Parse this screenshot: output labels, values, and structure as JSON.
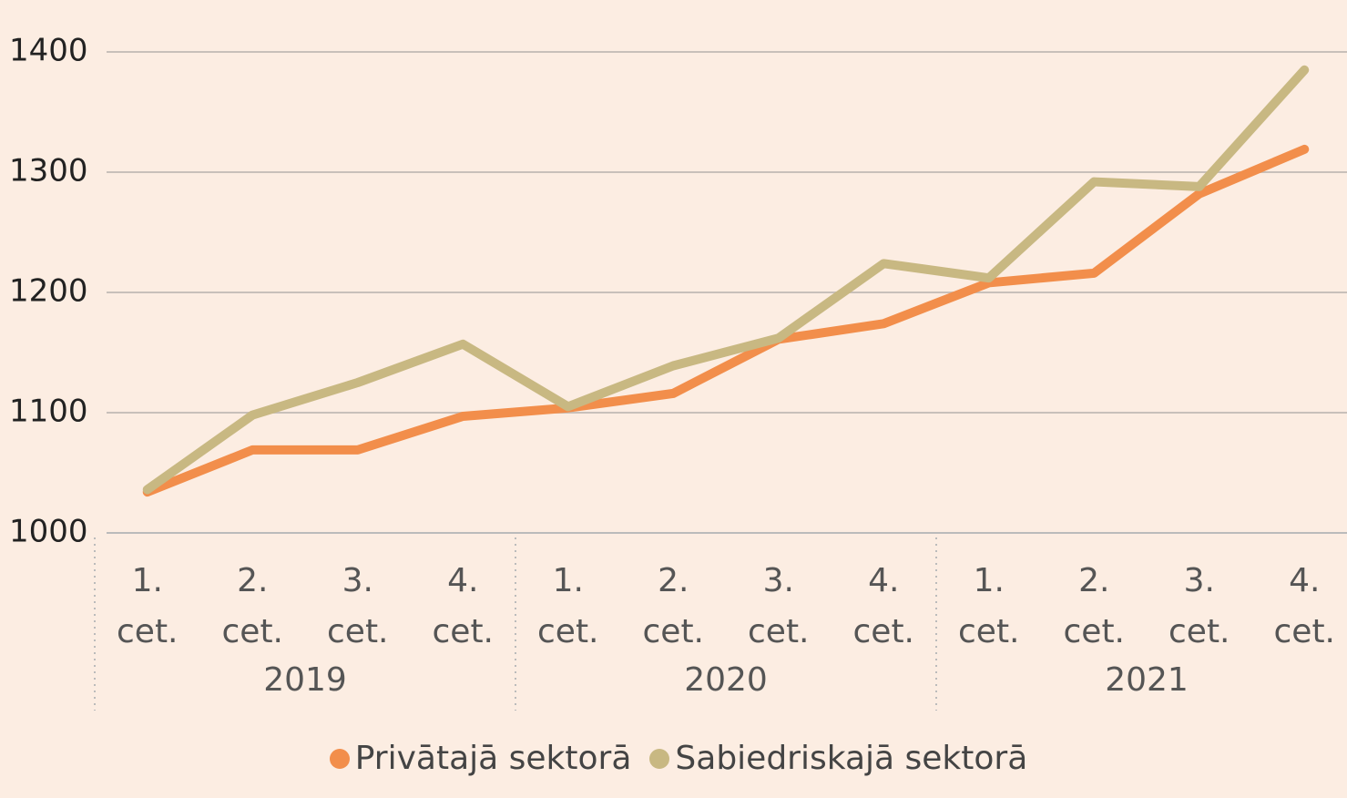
{
  "chart_data": {
    "type": "line",
    "categories": [
      "1. cet.",
      "2. cet.",
      "3. cet.",
      "4. cet.",
      "1. cet.",
      "2. cet.",
      "3. cet.",
      "4. cet.",
      "1. cet.",
      "2. cet.",
      "3. cet.",
      "4. cet."
    ],
    "category_groups": [
      "2019",
      "2020",
      "2021"
    ],
    "series": [
      {
        "name": "Privātajā sektorā",
        "color": "#f28e4b",
        "values": [
          1034,
          1069,
          1069,
          1097,
          1104,
          1116,
          1161,
          1174,
          1208,
          1216,
          1282,
          1319
        ]
      },
      {
        "name": "Sabiedriskajā sektorā",
        "color": "#c8b882",
        "values": [
          1036,
          1098,
          1125,
          1157,
          1105,
          1139,
          1162,
          1224,
          1212,
          1292,
          1288,
          1385
        ]
      }
    ],
    "ylim": [
      1000,
      1400
    ],
    "yticks": [
      1000,
      1100,
      1200,
      1300,
      1400
    ],
    "grid": true,
    "legend": "bottom"
  }
}
